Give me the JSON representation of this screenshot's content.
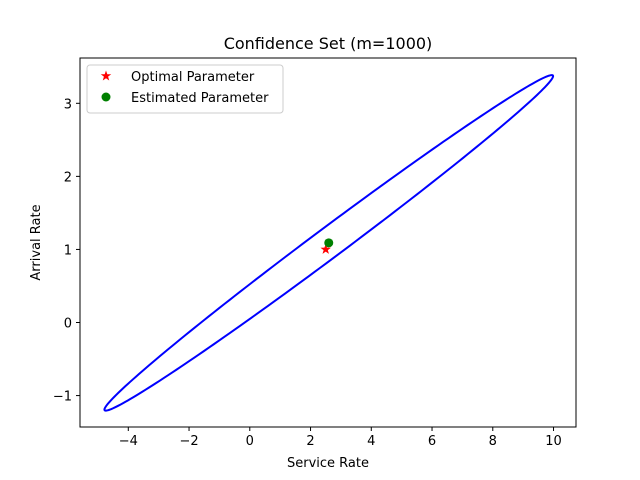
{
  "chart_data": {
    "type": "scatter",
    "title": "Confidence Set (m=1000)",
    "xlabel": "Service Rate",
    "ylabel": "Arrival Rate",
    "xlim": [
      -5.59,
      10.74
    ],
    "ylim": [
      -1.43,
      3.62
    ],
    "xticks": [
      -4,
      -2,
      0,
      2,
      4,
      6,
      8,
      10
    ],
    "xtick_labels": [
      "−4",
      "−2",
      "0",
      "2",
      "4",
      "6",
      "8",
      "10"
    ],
    "yticks": [
      -1,
      0,
      1,
      2,
      3
    ],
    "ytick_labels": [
      "−1",
      "0",
      "1",
      "2",
      "3"
    ],
    "grid": false,
    "legend_position": "upper-left",
    "confidence_ellipse": {
      "center": [
        2.6,
        1.09
      ],
      "extreme_point_a": [
        9.98,
        3.38
      ],
      "extreme_point_b": [
        -4.78,
        -1.2
      ],
      "perpendicular_point": [
        2.2,
        1.22
      ],
      "color": "#0000ff"
    },
    "series": [
      {
        "name": "Optimal Parameter",
        "marker": "star",
        "color": "#ff0000",
        "x": [
          2.5
        ],
        "y": [
          1.0
        ]
      },
      {
        "name": "Estimated Parameter",
        "marker": "circle",
        "color": "#008000",
        "x": [
          2.6
        ],
        "y": [
          1.09
        ]
      }
    ]
  }
}
